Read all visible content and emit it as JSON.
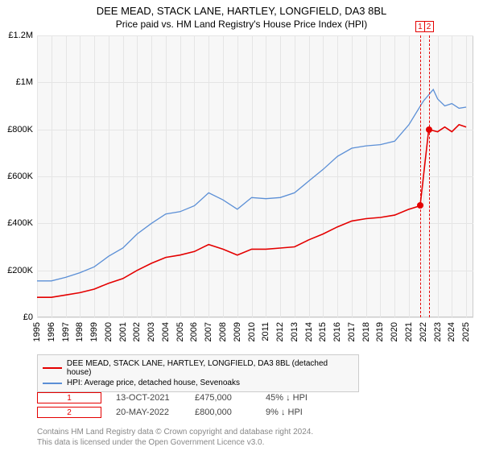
{
  "title": "DEE MEAD, STACK LANE, HARTLEY, LONGFIELD, DA3 8BL",
  "subtitle": "Price paid vs. HM Land Registry's House Price Index (HPI)",
  "chart": {
    "type": "line",
    "background_color": "#f7f7f7",
    "grid_color": "#e5e5e5",
    "border_color": "#cccccc",
    "y_axis": {
      "min": 0,
      "max": 1200000,
      "tick_labels": [
        "£0",
        "£200K",
        "£400K",
        "£600K",
        "£800K",
        "£1M",
        "£1.2M"
      ],
      "tick_positions": [
        0,
        200000,
        400000,
        600000,
        800000,
        1000000,
        1200000
      ],
      "fontsize": 11
    },
    "x_axis": {
      "min": 1995,
      "max": 2025.5,
      "tick_labels": [
        "1995",
        "1996",
        "1997",
        "1998",
        "1999",
        "2000",
        "2001",
        "2002",
        "2003",
        "2004",
        "2005",
        "2006",
        "2007",
        "2008",
        "2009",
        "2010",
        "2011",
        "2012",
        "2013",
        "2014",
        "2015",
        "2016",
        "2017",
        "2018",
        "2019",
        "2020",
        "2021",
        "2022",
        "2023",
        "2024",
        "2025"
      ],
      "fontsize": 11
    },
    "series": [
      {
        "name": "property",
        "label": "DEE MEAD, STACK LANE, HARTLEY, LONGFIELD, DA3 8BL (detached house)",
        "color": "#e40000",
        "line_width": 1.6,
        "points": [
          [
            1995.0,
            85000
          ],
          [
            1996.0,
            85000
          ],
          [
            1997.0,
            95000
          ],
          [
            1998.0,
            105000
          ],
          [
            1999.0,
            120000
          ],
          [
            2000.0,
            145000
          ],
          [
            2001.0,
            165000
          ],
          [
            2002.0,
            200000
          ],
          [
            2003.0,
            230000
          ],
          [
            2004.0,
            255000
          ],
          [
            2005.0,
            265000
          ],
          [
            2006.0,
            280000
          ],
          [
            2007.0,
            310000
          ],
          [
            2008.0,
            290000
          ],
          [
            2009.0,
            265000
          ],
          [
            2010.0,
            290000
          ],
          [
            2011.0,
            290000
          ],
          [
            2012.0,
            295000
          ],
          [
            2013.0,
            300000
          ],
          [
            2014.0,
            330000
          ],
          [
            2015.0,
            355000
          ],
          [
            2016.0,
            385000
          ],
          [
            2017.0,
            410000
          ],
          [
            2018.0,
            420000
          ],
          [
            2019.0,
            425000
          ],
          [
            2020.0,
            435000
          ],
          [
            2021.0,
            460000
          ],
          [
            2021.78,
            475000
          ],
          [
            2022.38,
            800000
          ],
          [
            2023.0,
            790000
          ],
          [
            2023.5,
            810000
          ],
          [
            2024.0,
            790000
          ],
          [
            2024.5,
            820000
          ],
          [
            2025.0,
            810000
          ]
        ]
      },
      {
        "name": "hpi",
        "label": "HPI: Average price, detached house, Sevenoaks",
        "color": "#5b8fd6",
        "line_width": 1.3,
        "points": [
          [
            1995.0,
            155000
          ],
          [
            1996.0,
            155000
          ],
          [
            1997.0,
            170000
          ],
          [
            1998.0,
            190000
          ],
          [
            1999.0,
            215000
          ],
          [
            2000.0,
            260000
          ],
          [
            2001.0,
            295000
          ],
          [
            2002.0,
            355000
          ],
          [
            2003.0,
            400000
          ],
          [
            2004.0,
            440000
          ],
          [
            2005.0,
            450000
          ],
          [
            2006.0,
            475000
          ],
          [
            2007.0,
            530000
          ],
          [
            2008.0,
            500000
          ],
          [
            2009.0,
            460000
          ],
          [
            2010.0,
            510000
          ],
          [
            2011.0,
            505000
          ],
          [
            2012.0,
            510000
          ],
          [
            2013.0,
            530000
          ],
          [
            2014.0,
            580000
          ],
          [
            2015.0,
            630000
          ],
          [
            2016.0,
            685000
          ],
          [
            2017.0,
            720000
          ],
          [
            2018.0,
            730000
          ],
          [
            2019.0,
            735000
          ],
          [
            2020.0,
            750000
          ],
          [
            2021.0,
            820000
          ],
          [
            2022.0,
            920000
          ],
          [
            2022.7,
            970000
          ],
          [
            2023.0,
            930000
          ],
          [
            2023.5,
            900000
          ],
          [
            2024.0,
            910000
          ],
          [
            2024.5,
            890000
          ],
          [
            2025.0,
            895000
          ]
        ]
      }
    ],
    "markers": [
      {
        "id": "1",
        "x": 2021.78,
        "y": 475000,
        "color": "#e40000"
      },
      {
        "id": "2",
        "x": 2022.38,
        "y": 800000,
        "color": "#e40000"
      }
    ]
  },
  "sales": [
    {
      "id": "1",
      "date": "13-OCT-2021",
      "price": "£475,000",
      "change": "45% ↓ HPI"
    },
    {
      "id": "2",
      "date": "20-MAY-2022",
      "price": "£800,000",
      "change": "9% ↓ HPI"
    }
  ],
  "footnote": {
    "line1": "Contains HM Land Registry data © Crown copyright and database right 2024.",
    "line2": "This data is licensed under the Open Government Licence v3.0."
  }
}
